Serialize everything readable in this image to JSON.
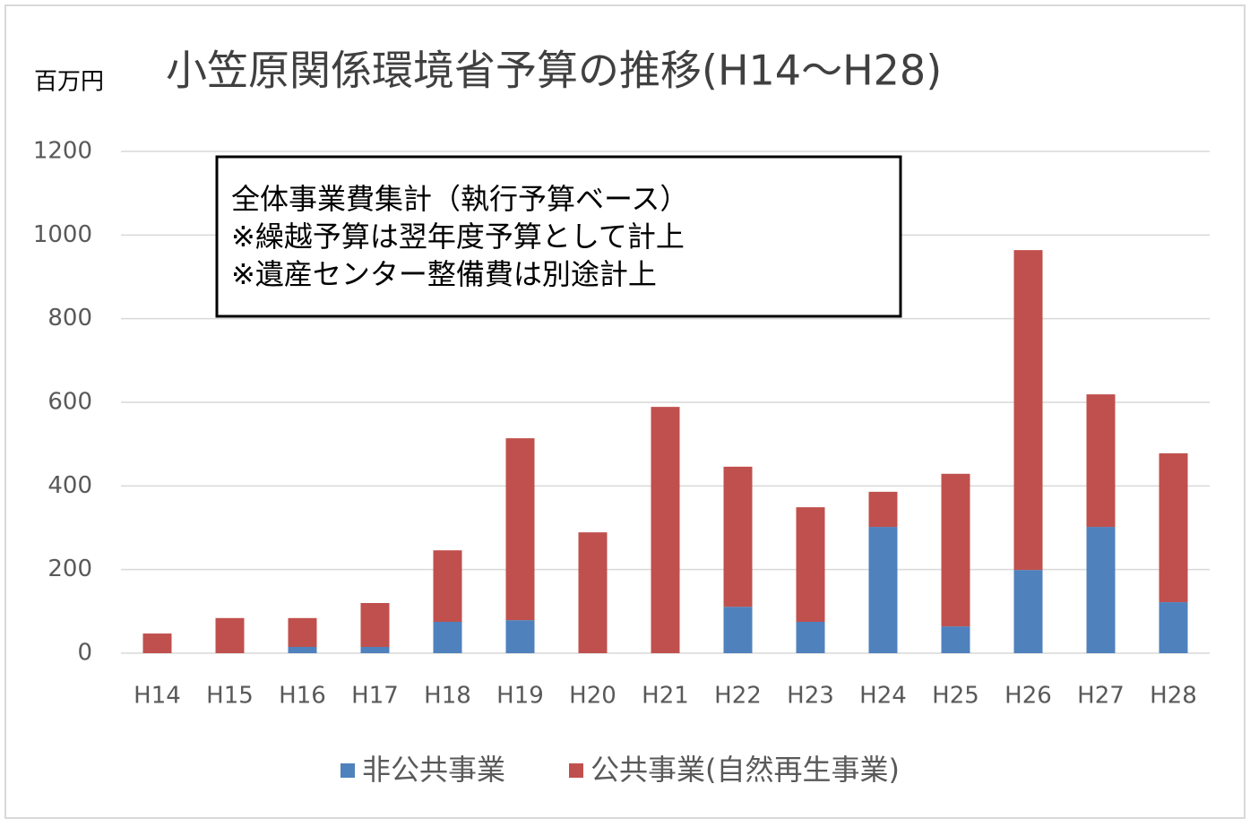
{
  "chart_data": {
    "type": "stacked_bar",
    "title": "小笠原関係環境省予算の推移(H14～H28)",
    "y_axis_label": "百万円",
    "annotation": [
      "全体事業費集計（執行予算ベース）",
      "※繰越予算は翌年度予算として計上",
      "※遺産センター整備費は別途計上"
    ],
    "categories": [
      "H14",
      "H15",
      "H16",
      "H17",
      "H18",
      "H19",
      "H20",
      "H21",
      "H22",
      "H23",
      "H24",
      "H25",
      "H26",
      "H27",
      "H28"
    ],
    "series": [
      {
        "name": "非公共事業",
        "color": "#4f81bd",
        "values": [
          0,
          0,
          15,
          15,
          75,
          79,
          0,
          0,
          111,
          75,
          302,
          64,
          199,
          302,
          122
        ]
      },
      {
        "name": "公共事業(自然再生事業)",
        "color": "#c0504d",
        "values": [
          47,
          84,
          69,
          105,
          171,
          435,
          289,
          589,
          335,
          274,
          84,
          365,
          765,
          317,
          356
        ]
      }
    ],
    "ylim": [
      0,
      1200
    ],
    "yticks": [
      0,
      200,
      400,
      600,
      800,
      1000,
      1200
    ],
    "grid": true,
    "legend": "bottom"
  }
}
